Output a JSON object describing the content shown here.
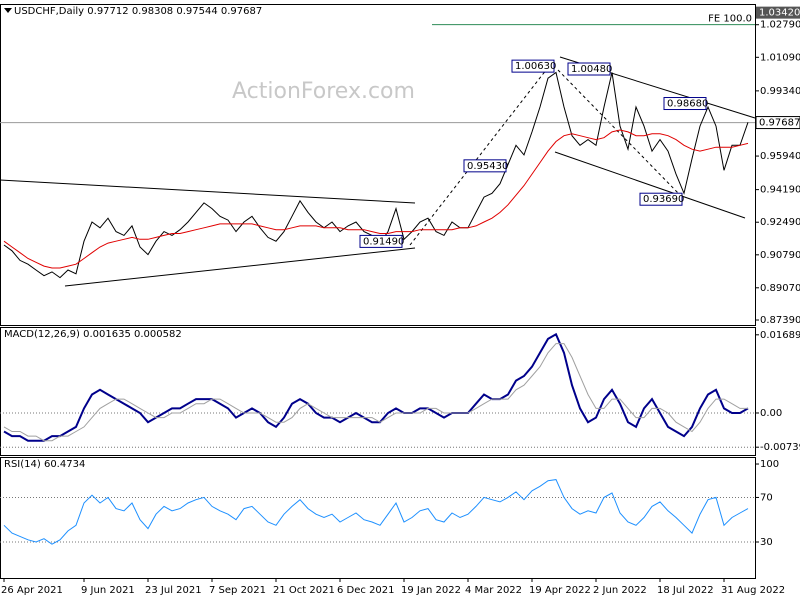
{
  "chart_data": [
    {
      "type": "line",
      "title": "USDCHF,Daily  0.97712 0.98308 0.97544 0.97687",
      "watermark": "ActionForex.com",
      "ylim": [
        0.8713,
        1.0387
      ],
      "yticks": [
        {
          "value": 0.8739,
          "label": "0.87390"
        },
        {
          "value": 0.8907,
          "label": "0.89070"
        },
        {
          "value": 0.9079,
          "label": "0.90790"
        },
        {
          "value": 0.9249,
          "label": "0.92490"
        },
        {
          "value": 0.9419,
          "label": "0.94190"
        },
        {
          "value": 0.9594,
          "label": "0.95940"
        },
        {
          "value": 0.9934,
          "label": "0.99340"
        },
        {
          "value": 1.0109,
          "label": "1.01090"
        },
        {
          "value": 1.0279,
          "label": "1.02790"
        }
      ],
      "last_price": 0.97687,
      "level_lines": [
        {
          "value": 1.0342,
          "label": "1.03420",
          "text": "FE 100.0"
        }
      ],
      "price_labels": [
        {
          "x": 69,
          "value": 1.0063,
          "label": "1.00630"
        },
        {
          "x": 76,
          "value": 1.0048,
          "label": "1.00480"
        },
        {
          "x": 88,
          "value": 0.9868,
          "label": "0.98680"
        },
        {
          "x": 63,
          "value": 0.9543,
          "label": "0.95430"
        },
        {
          "x": 85,
          "value": 0.9369,
          "label": "0.93690"
        },
        {
          "x": 50,
          "value": 0.9149,
          "label": "0.91490"
        }
      ],
      "series": [
        {
          "color": "#000000",
          "values": [
            0.913,
            0.91,
            0.905,
            0.903,
            0.9,
            0.897,
            0.899,
            0.896,
            0.9,
            0.898,
            0.915,
            0.925,
            0.922,
            0.927,
            0.92,
            0.918,
            0.923,
            0.912,
            0.908,
            0.915,
            0.92,
            0.918,
            0.921,
            0.925,
            0.93,
            0.935,
            0.932,
            0.928,
            0.926,
            0.92,
            0.925,
            0.928,
            0.922,
            0.917,
            0.915,
            0.92,
            0.928,
            0.936,
            0.93,
            0.925,
            0.922,
            0.925,
            0.92,
            0.923,
            0.925,
            0.92,
            0.918,
            0.914,
            0.92,
            0.932,
            0.916,
            0.92,
            0.925,
            0.927,
            0.92,
            0.918,
            0.925,
            0.922,
            0.922,
            0.93,
            0.938,
            0.94,
            0.945,
            0.955,
            0.965,
            0.96,
            0.972,
            0.985,
            1.0,
            1.003,
            0.985,
            0.97,
            0.965,
            0.968,
            0.965,
            0.985,
            1.003,
            0.975,
            0.963,
            0.985,
            0.975,
            0.962,
            0.968,
            0.962,
            0.95,
            0.94,
            0.958,
            0.975,
            0.985,
            0.975,
            0.952,
            0.965,
            0.965,
            0.977
          ]
        },
        {
          "color": "#e00000",
          "values": [
            0.915,
            0.912,
            0.909,
            0.906,
            0.904,
            0.902,
            0.901,
            0.901,
            0.902,
            0.903,
            0.906,
            0.909,
            0.912,
            0.914,
            0.915,
            0.916,
            0.917,
            0.916,
            0.916,
            0.917,
            0.918,
            0.919,
            0.919,
            0.92,
            0.921,
            0.922,
            0.923,
            0.924,
            0.924,
            0.924,
            0.924,
            0.924,
            0.923,
            0.922,
            0.921,
            0.921,
            0.922,
            0.923,
            0.923,
            0.923,
            0.922,
            0.922,
            0.922,
            0.921,
            0.921,
            0.921,
            0.92,
            0.919,
            0.919,
            0.92,
            0.92,
            0.92,
            0.921,
            0.921,
            0.921,
            0.921,
            0.921,
            0.922,
            0.922,
            0.923,
            0.925,
            0.927,
            0.93,
            0.934,
            0.939,
            0.944,
            0.95,
            0.956,
            0.962,
            0.967,
            0.97,
            0.971,
            0.97,
            0.969,
            0.968,
            0.969,
            0.972,
            0.973,
            0.972,
            0.97,
            0.97,
            0.971,
            0.971,
            0.97,
            0.968,
            0.965,
            0.963,
            0.962,
            0.963,
            0.964,
            0.964,
            0.964,
            0.965,
            0.966
          ]
        }
      ]
    },
    {
      "type": "line",
      "title": "MACD(12,26,9) 0.001635 0.000582",
      "ylim": [
        -0.00908,
        0.01858
      ],
      "yticks": [
        -0.007393,
        {
          "value": 0,
          "label": "0.00"
        },
        0.016893
      ],
      "grid": true,
      "series": [
        {
          "color": "#00008b",
          "values": [
            -0.004,
            -0.005,
            -0.005,
            -0.006,
            -0.006,
            -0.006,
            -0.005,
            -0.005,
            -0.004,
            -0.003,
            0.001,
            0.004,
            0.005,
            0.004,
            0.003,
            0.002,
            0.001,
            0.0,
            -0.002,
            -0.001,
            0.0,
            0.001,
            0.001,
            0.002,
            0.003,
            0.003,
            0.003,
            0.002,
            0.001,
            -0.001,
            0.0,
            0.001,
            0.0,
            -0.002,
            -0.003,
            -0.001,
            0.002,
            0.003,
            0.002,
            0.0,
            -0.001,
            -0.001,
            -0.002,
            -0.001,
            0.0,
            -0.001,
            -0.002,
            -0.002,
            0.0,
            0.001,
            0.0,
            0.0,
            0.001,
            0.001,
            0.0,
            -0.001,
            0.0,
            0.0,
            0.0,
            0.002,
            0.004,
            0.003,
            0.003,
            0.004,
            0.007,
            0.008,
            0.01,
            0.013,
            0.016,
            0.017,
            0.013,
            0.006,
            0.001,
            -0.002,
            -0.001,
            0.003,
            0.005,
            0.002,
            -0.002,
            -0.003,
            0.001,
            0.003,
            0.0,
            -0.003,
            -0.004,
            -0.005,
            -0.003,
            0.001,
            0.004,
            0.005,
            0.001,
            0.0,
            0.0,
            0.001
          ]
        },
        {
          "color": "#a0a0a0",
          "values": [
            -0.003,
            -0.004,
            -0.004,
            -0.005,
            -0.005,
            -0.006,
            -0.006,
            -0.005,
            -0.005,
            -0.004,
            -0.003,
            -0.001,
            0.001,
            0.002,
            0.003,
            0.003,
            0.002,
            0.001,
            0.0,
            -0.001,
            -0.001,
            0.0,
            0.0,
            0.001,
            0.002,
            0.002,
            0.003,
            0.003,
            0.002,
            0.001,
            0.0,
            0.0,
            0.0,
            -0.001,
            -0.002,
            -0.002,
            -0.001,
            0.001,
            0.002,
            0.001,
            0.0,
            -0.001,
            -0.001,
            -0.001,
            -0.001,
            -0.001,
            -0.001,
            -0.002,
            -0.001,
            0.0,
            0.0,
            0.0,
            0.0,
            0.001,
            0.001,
            0.0,
            0.0,
            0.0,
            0.0,
            0.001,
            0.002,
            0.003,
            0.003,
            0.003,
            0.005,
            0.006,
            0.008,
            0.01,
            0.013,
            0.015,
            0.015,
            0.012,
            0.008,
            0.004,
            0.001,
            0.001,
            0.003,
            0.003,
            0.001,
            -0.001,
            -0.001,
            0.001,
            0.001,
            0.0,
            -0.002,
            -0.003,
            -0.004,
            -0.002,
            0.001,
            0.003,
            0.003,
            0.002,
            0.001,
            0.001
          ]
        }
      ]
    },
    {
      "type": "line",
      "title": "RSI(14) 60.4734",
      "ylim": [
        -2.3,
        106.3
      ],
      "yticks": [
        30,
        70,
        100
      ],
      "grid": true,
      "categories": [
        "26 Apr 2021",
        null,
        null,
        null,
        null,
        null,
        null,
        null,
        null,
        null,
        "9 Jun 2021",
        null,
        null,
        null,
        null,
        null,
        null,
        null,
        "23 Jul 2021",
        null,
        null,
        null,
        null,
        null,
        null,
        null,
        "7 Sep 2021",
        null,
        null,
        null,
        null,
        null,
        null,
        null,
        "21 Oct 2021",
        null,
        null,
        null,
        null,
        null,
        null,
        null,
        "6 Dec 2021",
        null,
        null,
        null,
        null,
        null,
        null,
        null,
        "19 Jan 2022",
        null,
        null,
        null,
        null,
        null,
        null,
        null,
        "4 Mar 2022",
        null,
        null,
        null,
        null,
        null,
        null,
        null,
        "19 Apr 2022",
        null,
        null,
        null,
        null,
        null,
        null,
        null,
        "2 Jun 2022",
        null,
        null,
        null,
        null,
        null,
        null,
        null,
        "18 Jul 2022",
        null,
        null,
        null,
        null,
        null,
        null,
        null,
        "31 Aug 2022",
        null,
        null,
        null
      ],
      "series": [
        {
          "color": "#1e90ff",
          "values": [
            45,
            38,
            35,
            32,
            30,
            33,
            28,
            32,
            40,
            45,
            65,
            72,
            65,
            70,
            60,
            58,
            65,
            50,
            42,
            55,
            62,
            58,
            60,
            65,
            68,
            70,
            62,
            58,
            55,
            50,
            60,
            62,
            55,
            48,
            45,
            55,
            62,
            68,
            60,
            55,
            52,
            55,
            48,
            52,
            56,
            50,
            48,
            45,
            55,
            65,
            48,
            52,
            58,
            60,
            50,
            48,
            56,
            52,
            55,
            62,
            70,
            68,
            66,
            70,
            75,
            68,
            76,
            80,
            85,
            86,
            70,
            60,
            55,
            58,
            56,
            70,
            74,
            56,
            48,
            45,
            52,
            62,
            66,
            58,
            52,
            45,
            38,
            55,
            68,
            70,
            45,
            52,
            56,
            60
          ]
        }
      ]
    }
  ]
}
